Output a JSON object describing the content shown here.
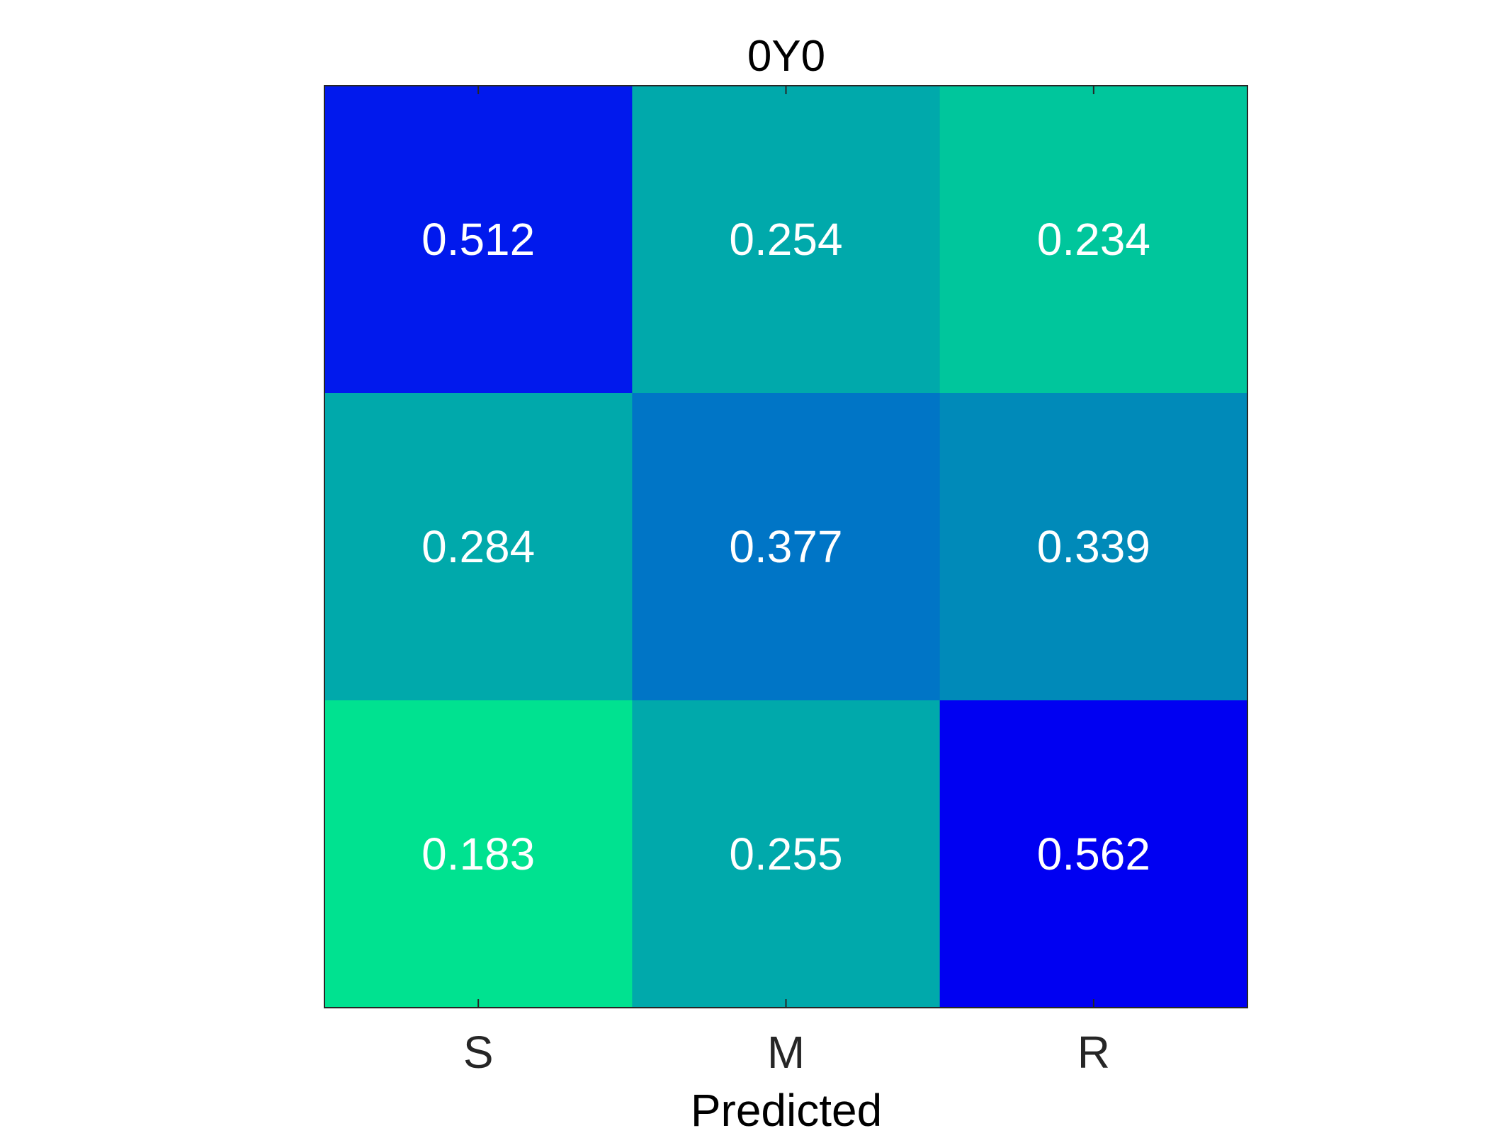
{
  "chart_data": {
    "type": "heatmap",
    "title": "0Y0",
    "xlabel": "Predicted",
    "ylabel": "",
    "x_categories": [
      "S",
      "M",
      "R"
    ],
    "rows": [
      {
        "values": [
          0.512,
          0.254,
          0.234
        ],
        "labels": [
          "0.512",
          "0.254",
          "0.234"
        ]
      },
      {
        "values": [
          0.284,
          0.377,
          0.339
        ],
        "labels": [
          "0.284",
          "0.377",
          "0.339"
        ]
      },
      {
        "values": [
          0.183,
          0.255,
          0.562
        ],
        "labels": [
          "0.183",
          "0.255",
          "0.562"
        ]
      }
    ],
    "cell_colors": [
      [
        "#0119ED",
        "#00A9AB",
        "#00C69C"
      ],
      [
        "#00A9AB",
        "#0075C6",
        "#008AB9"
      ],
      [
        "#00E290",
        "#00A9AB",
        "#0000F2"
      ]
    ],
    "grid": false,
    "colorbar": false
  }
}
